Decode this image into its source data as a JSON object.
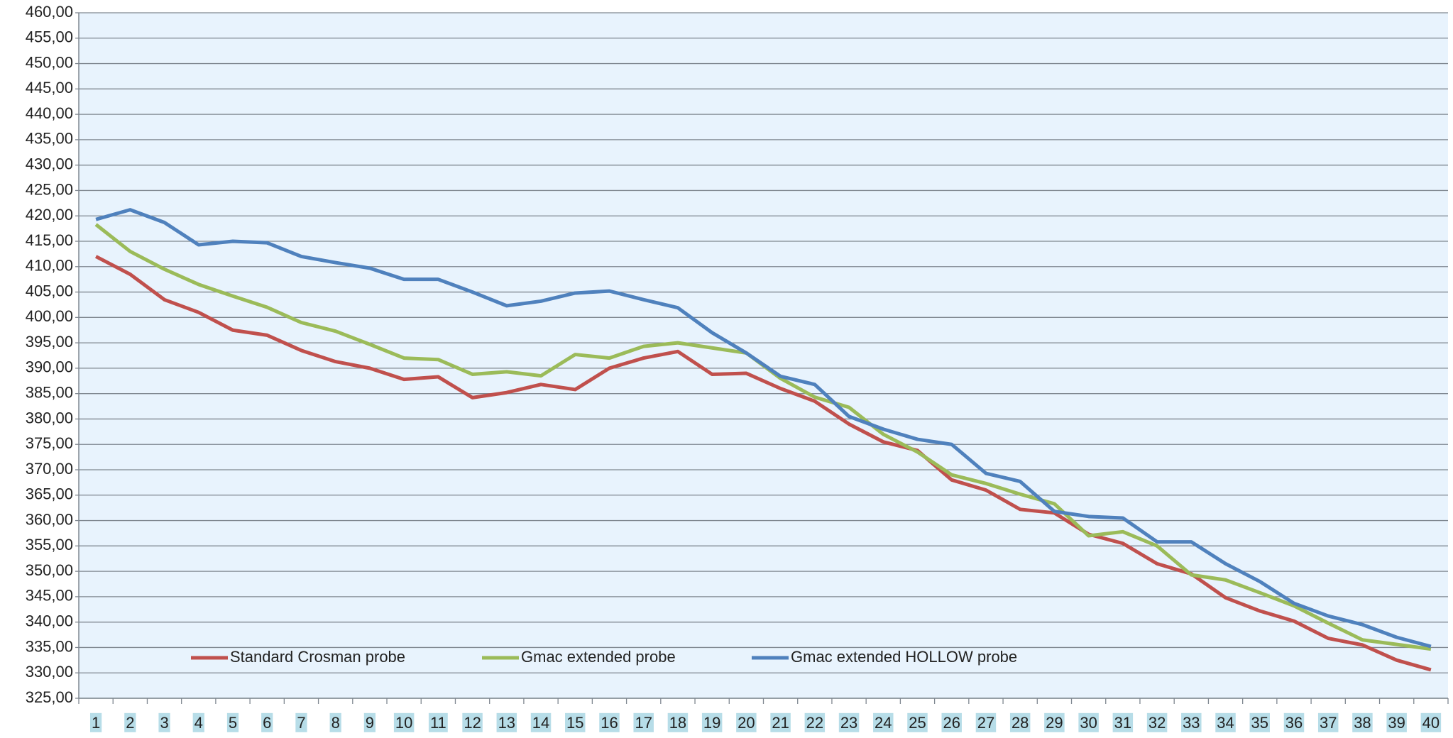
{
  "chart_data": {
    "type": "line",
    "categories": [
      "1",
      "2",
      "3",
      "4",
      "5",
      "6",
      "7",
      "8",
      "9",
      "10",
      "11",
      "12",
      "13",
      "14",
      "15",
      "16",
      "17",
      "18",
      "19",
      "20",
      "21",
      "22",
      "23",
      "24",
      "25",
      "26",
      "27",
      "28",
      "29",
      "30",
      "31",
      "32",
      "33",
      "34",
      "35",
      "36",
      "37",
      "38",
      "39",
      "40"
    ],
    "series": [
      {
        "name": "Standard Crosman probe",
        "color": "#c0504d",
        "values": [
          412,
          408.5,
          403.5,
          401,
          397.5,
          396.5,
          393.5,
          391.3,
          390,
          387.8,
          388.3,
          384.2,
          385.2,
          386.8,
          385.8,
          390,
          392,
          393.3,
          388.8,
          389,
          386,
          383.5,
          379,
          375.5,
          373.8,
          368,
          366,
          362.2,
          361.5,
          357.3,
          355.5,
          351.5,
          349.5,
          344.8,
          342.2,
          340.2,
          336.8,
          335.5,
          332.5,
          330.6
        ]
      },
      {
        "name": "Gmac extended probe",
        "color": "#9bbb59",
        "values": [
          418.3,
          413,
          409.5,
          406.5,
          404.2,
          402,
          399,
          397.3,
          394.7,
          392,
          391.7,
          388.8,
          389.3,
          388.5,
          392.7,
          392,
          394.3,
          395,
          394,
          393,
          388,
          384.3,
          382.3,
          377,
          373.5,
          369,
          367.3,
          365.2,
          363.3,
          357,
          357.8,
          355,
          349.3,
          348.3,
          345.8,
          343.2,
          339.8,
          336.5,
          335.6,
          334.7
        ]
      },
      {
        "name": "Gmac extended HOLLOW probe",
        "color": "#4f81bd",
        "values": [
          419.3,
          421.2,
          418.7,
          414.3,
          415,
          414.7,
          412,
          410.8,
          409.7,
          407.5,
          407.5,
          405,
          402.3,
          403.2,
          404.8,
          405.2,
          403.5,
          401.9,
          397,
          393,
          388.4,
          386.8,
          380.5,
          378,
          376,
          375,
          369.3,
          367.7,
          361.8,
          360.8,
          360.5,
          355.8,
          355.8,
          351.5,
          348,
          343.7,
          341.2,
          339.5,
          337,
          335.2
        ]
      }
    ],
    "ylim": [
      325,
      460
    ],
    "yticks": [
      {
        "value": 325,
        "label": "325,00"
      },
      {
        "value": 330,
        "label": "330,00"
      },
      {
        "value": 335,
        "label": "335,00"
      },
      {
        "value": 340,
        "label": "340,00"
      },
      {
        "value": 345,
        "label": "345,00"
      },
      {
        "value": 350,
        "label": "350,00"
      },
      {
        "value": 355,
        "label": "355,00"
      },
      {
        "value": 360,
        "label": "360,00"
      },
      {
        "value": 365,
        "label": "365,00"
      },
      {
        "value": 370,
        "label": "370,00"
      },
      {
        "value": 375,
        "label": "375,00"
      },
      {
        "value": 380,
        "label": "380,00"
      },
      {
        "value": 385,
        "label": "385,00"
      },
      {
        "value": 390,
        "label": "390,00"
      },
      {
        "value": 395,
        "label": "395,00"
      },
      {
        "value": 400,
        "label": "400,00"
      },
      {
        "value": 405,
        "label": "405,00"
      },
      {
        "value": 410,
        "label": "410,00"
      },
      {
        "value": 415,
        "label": "415,00"
      },
      {
        "value": 420,
        "label": "420,00"
      },
      {
        "value": 425,
        "label": "425,00"
      },
      {
        "value": 430,
        "label": "430,00"
      },
      {
        "value": 435,
        "label": "435,00"
      },
      {
        "value": 440,
        "label": "440,00"
      },
      {
        "value": 445,
        "label": "445,00"
      },
      {
        "value": 450,
        "label": "450,00"
      },
      {
        "value": 455,
        "label": "455,00"
      },
      {
        "value": 460,
        "label": "460,00"
      }
    ],
    "grid": true,
    "legend": "bottom"
  }
}
